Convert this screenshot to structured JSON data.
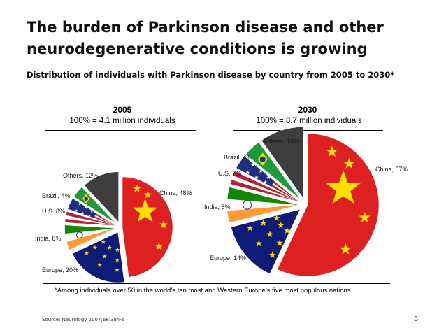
{
  "slide": {
    "title": "The burden of Parkinson disease and other neurodegenerative conditions is growing",
    "subtitle": "Distribution of individuals with Parkinson disease by country from 2005 to 2030*",
    "footnote": "*Among individuals over 50 in the world’s ten most and Western Europe’s five most populous nations",
    "source": "Source: Neurology 2007;68:384-6",
    "page_number": "5"
  },
  "chart_data": [
    {
      "type": "pie",
      "title": "2005",
      "subtitle": "100% = 4.1 million individuals",
      "slices": [
        {
          "name": "China",
          "value": 48,
          "label": "China, 48%"
        },
        {
          "name": "Europe",
          "value": 20,
          "label": "Europe, 20%"
        },
        {
          "name": "India",
          "value": 8,
          "label": "India, 8%"
        },
        {
          "name": "U.S.",
          "value": 8,
          "label": "U.S. 8%"
        },
        {
          "name": "Brazil",
          "value": 4,
          "label": "Brazil, 4%"
        },
        {
          "name": "Others",
          "value": 12,
          "label": "Others, 12%"
        }
      ]
    },
    {
      "type": "pie",
      "title": "2030",
      "subtitle": "100% = 8.7 million individuals",
      "slices": [
        {
          "name": "China",
          "value": 57,
          "label": "China, 57%"
        },
        {
          "name": "Europe",
          "value": 14,
          "label": "Europe, 14%"
        },
        {
          "name": "India",
          "value": 8,
          "label": "India, 8%"
        },
        {
          "name": "U.S.",
          "value": 7,
          "label": "U.S. 7%"
        },
        {
          "name": "Brazil",
          "value": 4,
          "label": "Brazil, 4%"
        },
        {
          "name": "Others",
          "value": 10,
          "label": "Others, 10%"
        }
      ]
    }
  ],
  "colors": {
    "China": "#dd2020",
    "Europe": "#0e1c78",
    "India": "#f08a24",
    "U.S.": "#b22234",
    "Brazil": "#1f9a3a",
    "Others": "#3e3e3e"
  }
}
